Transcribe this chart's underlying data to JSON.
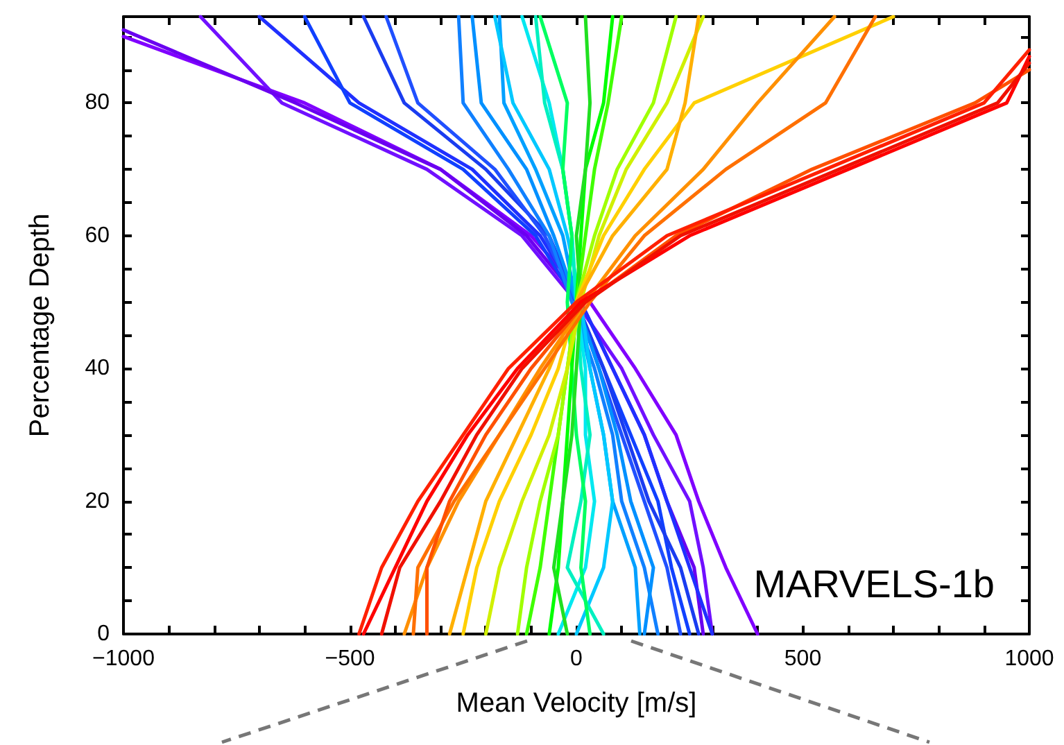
{
  "chart_data": {
    "type": "line",
    "xlabel": "Mean Velocity [m/s]",
    "ylabel": "Percentage Depth",
    "annotations": [
      "MARVELS-1b"
    ],
    "xlim": [
      -1000,
      1000
    ],
    "ylim": [
      0,
      93
    ],
    "xticks": [
      -1000,
      {
        "value": -900,
        "label": null
      },
      {
        "value": -800,
        "label": null
      },
      {
        "value": -700,
        "label": null
      },
      {
        "value": -600,
        "label": null
      },
      -500,
      {
        "value": -400,
        "label": null
      },
      {
        "value": -300,
        "label": null
      },
      {
        "value": -200,
        "label": null
      },
      {
        "value": -100,
        "label": null
      },
      0,
      {
        "value": 100,
        "label": null
      },
      {
        "value": 200,
        "label": null
      },
      {
        "value": 300,
        "label": null
      },
      {
        "value": 400,
        "label": null
      },
      500,
      {
        "value": 600,
        "label": null
      },
      {
        "value": 700,
        "label": null
      },
      {
        "value": 800,
        "label": null
      },
      {
        "value": 900,
        "label": null
      },
      1000
    ],
    "yticks": [
      0,
      {
        "value": 5,
        "label": null
      },
      {
        "value": 10,
        "label": null
      },
      {
        "value": 15,
        "label": null
      },
      20,
      {
        "value": 25,
        "label": null
      },
      {
        "value": 30,
        "label": null
      },
      {
        "value": 35,
        "label": null
      },
      40,
      {
        "value": 45,
        "label": null
      },
      {
        "value": 50,
        "label": null
      },
      {
        "value": 55,
        "label": null
      },
      60,
      {
        "value": 65,
        "label": null
      },
      {
        "value": 70,
        "label": null
      },
      {
        "value": 75,
        "label": null
      },
      80,
      {
        "value": 85,
        "label": null
      },
      {
        "value": 90,
        "label": null
      }
    ],
    "grid": false,
    "marker": "none",
    "line_style": "solid",
    "series": [
      {
        "color": "#8000ff",
        "x": [
          400,
          330,
          270,
          220,
          130,
          30,
          -100,
          -300,
          -600,
          -1000
        ],
        "values": [
          0,
          10,
          20,
          30,
          40,
          50,
          60,
          70,
          80,
          90
        ]
      },
      {
        "color": "#7010ff",
        "x": [
          300,
          280,
          250,
          170,
          100,
          0,
          -120,
          -330,
          -650,
          -830
        ],
        "values": [
          0,
          10,
          20,
          30,
          40,
          50,
          60,
          70,
          80,
          93
        ]
      },
      {
        "color": "#6a00f0",
        "x": [
          280,
          260,
          200,
          150,
          80,
          10,
          -110,
          -300,
          -620,
          -1000
        ],
        "values": [
          0,
          10,
          20,
          30,
          40,
          50,
          60,
          70,
          80,
          91
        ]
      },
      {
        "color": "#2030ff",
        "x": [
          300,
          250,
          200,
          150,
          80,
          10,
          -80,
          -230,
          -480,
          -700
        ],
        "values": [
          0,
          10,
          20,
          30,
          40,
          50,
          60,
          70,
          80,
          93
        ]
      },
      {
        "color": "#1040ff",
        "x": [
          250,
          210,
          180,
          120,
          60,
          0,
          -90,
          -250,
          -500,
          -600
        ],
        "values": [
          0,
          10,
          20,
          30,
          40,
          50,
          60,
          70,
          80,
          93
        ]
      },
      {
        "color": "#1a3cf0",
        "x": [
          270,
          230,
          160,
          110,
          60,
          0,
          -60,
          -200,
          -380,
          -470
        ],
        "values": [
          0,
          10,
          20,
          30,
          40,
          50,
          60,
          70,
          80,
          93
        ]
      },
      {
        "color": "#2050ff",
        "x": [
          230,
          200,
          150,
          100,
          50,
          0,
          -70,
          -180,
          -350,
          -420
        ],
        "values": [
          0,
          10,
          20,
          30,
          40,
          50,
          60,
          70,
          80,
          93
        ]
      },
      {
        "color": "#1080ff",
        "x": [
          180,
          150,
          100,
          80,
          40,
          -10,
          -60,
          -150,
          -250,
          -260
        ],
        "values": [
          0,
          10,
          20,
          30,
          40,
          50,
          60,
          70,
          80,
          93
        ]
      },
      {
        "color": "#0090ff",
        "x": [
          150,
          170,
          120,
          90,
          50,
          0,
          -50,
          -110,
          -210,
          -230
        ],
        "values": [
          0,
          10,
          20,
          30,
          40,
          50,
          60,
          70,
          80,
          93
        ]
      },
      {
        "color": "#00a0ff",
        "x": [
          140,
          130,
          80,
          60,
          30,
          0,
          -30,
          -90,
          -160,
          -170
        ],
        "values": [
          0,
          10,
          20,
          30,
          40,
          50,
          60,
          70,
          80,
          93
        ]
      },
      {
        "color": "#00c8ff",
        "x": [
          0,
          60,
          80,
          60,
          30,
          10,
          -20,
          -60,
          -140,
          -180
        ],
        "values": [
          0,
          10,
          20,
          30,
          40,
          50,
          60,
          70,
          80,
          93
        ]
      },
      {
        "color": "#00e8f0",
        "x": [
          -40,
          20,
          40,
          20,
          20,
          0,
          -10,
          -30,
          -60,
          -120
        ],
        "values": [
          0,
          10,
          20,
          30,
          40,
          50,
          60,
          70,
          80,
          93
        ]
      },
      {
        "color": "#00f0c0",
        "x": [
          60,
          -20,
          10,
          30,
          10,
          0,
          -10,
          -30,
          -70,
          -90
        ],
        "values": [
          0,
          10,
          20,
          30,
          40,
          50,
          60,
          70,
          80,
          93
        ]
      },
      {
        "color": "#00ff60",
        "x": [
          30,
          10,
          20,
          0,
          -10,
          -20,
          -10,
          -30,
          -20,
          -80
        ],
        "values": [
          0,
          10,
          20,
          30,
          40,
          50,
          60,
          70,
          80,
          93
        ]
      },
      {
        "color": "#00ff00",
        "x": [
          -60,
          -40,
          -30,
          -20,
          -10,
          0,
          10,
          20,
          60,
          80
        ],
        "values": [
          0,
          10,
          20,
          30,
          40,
          50,
          60,
          70,
          80,
          93
        ]
      },
      {
        "color": "#40ff00",
        "x": [
          -110,
          -80,
          -60,
          -40,
          -20,
          0,
          20,
          40,
          70,
          100
        ],
        "values": [
          0,
          10,
          20,
          30,
          40,
          50,
          60,
          70,
          80,
          93
        ]
      },
      {
        "color": "#20e020",
        "x": [
          -20,
          -50,
          -30,
          -10,
          0,
          10,
          0,
          20,
          30,
          20
        ],
        "values": [
          0,
          10,
          20,
          30,
          40,
          50,
          60,
          70,
          80,
          93
        ]
      },
      {
        "color": "#a0ff00",
        "x": [
          -130,
          -110,
          -80,
          -40,
          -20,
          0,
          40,
          90,
          170,
          220
        ],
        "values": [
          0,
          10,
          20,
          30,
          40,
          50,
          60,
          70,
          80,
          93
        ]
      },
      {
        "color": "#d0f000",
        "x": [
          -200,
          -170,
          -120,
          -60,
          -20,
          10,
          50,
          110,
          200,
          280
        ],
        "values": [
          0,
          10,
          20,
          30,
          40,
          50,
          60,
          70,
          80,
          93
        ]
      },
      {
        "color": "#ffd000",
        "x": [
          -250,
          -220,
          -170,
          -100,
          -40,
          0,
          60,
          150,
          260,
          700
        ],
        "values": [
          0,
          10,
          20,
          30,
          40,
          50,
          60,
          70,
          80,
          93
        ]
      },
      {
        "color": "#ffb000",
        "x": [
          -280,
          -240,
          -200,
          -130,
          -60,
          0,
          80,
          200,
          240,
          270
        ],
        "values": [
          0,
          10,
          20,
          30,
          40,
          50,
          60,
          70,
          80,
          93
        ]
      },
      {
        "color": "#ff9000",
        "x": [
          -380,
          -330,
          -260,
          -170,
          -80,
          20,
          130,
          280,
          400,
          570
        ],
        "values": [
          0,
          10,
          20,
          30,
          40,
          50,
          60,
          70,
          80,
          93
        ]
      },
      {
        "color": "#ff7000",
        "x": [
          -360,
          -350,
          -270,
          -170,
          -70,
          30,
          150,
          330,
          550,
          660
        ],
        "values": [
          0,
          10,
          20,
          30,
          40,
          50,
          60,
          70,
          80,
          93
        ]
      },
      {
        "color": "#ff5000",
        "x": [
          -330,
          -330,
          -280,
          -200,
          -100,
          20,
          220,
          520,
          880,
          1000
        ],
        "values": [
          0,
          10,
          20,
          30,
          40,
          50,
          60,
          70,
          80,
          85
        ]
      },
      {
        "color": "#ff2000",
        "x": [
          -480,
          -430,
          -350,
          -250,
          -150,
          0,
          200,
          550,
          900,
          1000
        ],
        "values": [
          0,
          10,
          20,
          30,
          40,
          50,
          60,
          70,
          80,
          88
        ]
      },
      {
        "color": "#ff0000",
        "x": [
          -470,
          -400,
          -330,
          -240,
          -130,
          10,
          250,
          600,
          950,
          1000
        ],
        "values": [
          0,
          10,
          20,
          30,
          40,
          50,
          60,
          70,
          80,
          87
        ]
      },
      {
        "color": "#f01000",
        "x": [
          -430,
          -390,
          -300,
          -220,
          -120,
          20,
          230,
          580,
          930,
          1000
        ],
        "values": [
          0,
          10,
          20,
          30,
          40,
          50,
          60,
          70,
          80,
          86
        ]
      }
    ]
  }
}
